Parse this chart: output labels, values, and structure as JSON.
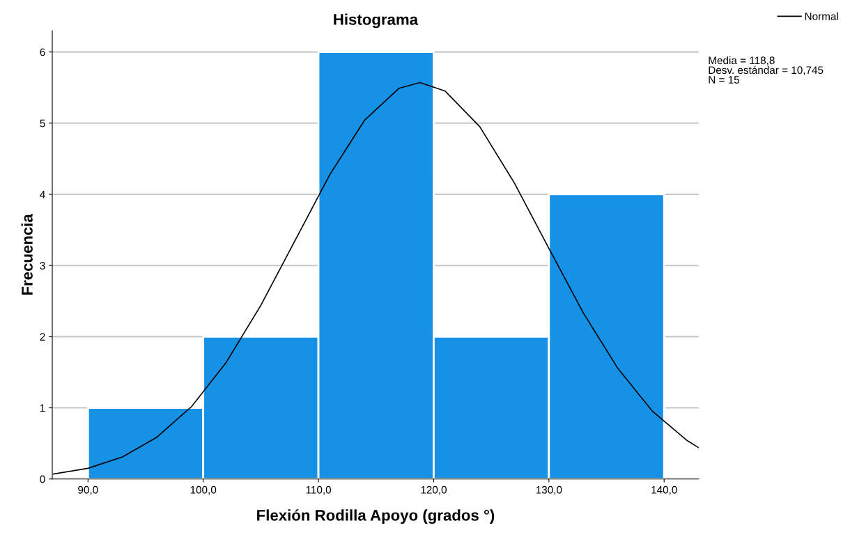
{
  "chart_data": {
    "type": "histogram",
    "title": "Histograma",
    "xlabel": "Flexión Rodilla Apoyo (grados °)",
    "ylabel": "Frecuencia",
    "bins": [
      90,
      100,
      110,
      120,
      130,
      140
    ],
    "values": [
      1,
      2,
      6,
      2,
      4
    ],
    "color": "#1591e6",
    "series": [
      {
        "type": "line",
        "name": "Normal",
        "color": "#000000",
        "x": [
          87,
          90,
          93,
          96,
          99,
          102,
          105,
          108,
          111,
          114,
          117,
          118.8,
          121,
          124,
          127,
          130,
          133,
          136,
          139,
          142,
          143
        ],
        "values": [
          0.07,
          0.15,
          0.31,
          0.59,
          1.02,
          1.64,
          2.44,
          3.36,
          4.28,
          5.04,
          5.49,
          5.57,
          5.45,
          4.95,
          4.16,
          3.24,
          2.33,
          1.55,
          0.95,
          0.54,
          0.44
        ]
      }
    ],
    "xlim": [
      86.9,
      143.0
    ],
    "ylim": [
      0,
      6.3
    ],
    "xticks": [
      {
        "value": 90,
        "label": "90,0"
      },
      {
        "value": 100,
        "label": "100,0"
      },
      {
        "value": 110,
        "label": "110,0"
      },
      {
        "value": 120,
        "label": "120,0"
      },
      {
        "value": 130,
        "label": "130,0"
      },
      {
        "value": 140,
        "label": "140,0"
      }
    ],
    "yticks": [
      0,
      1,
      2,
      3,
      4,
      5,
      6
    ],
    "grid": "y",
    "legend": "top right",
    "annotations": [
      "Media = 118,8",
      "Desv. estándar = 10,745",
      "N = 15"
    ]
  }
}
